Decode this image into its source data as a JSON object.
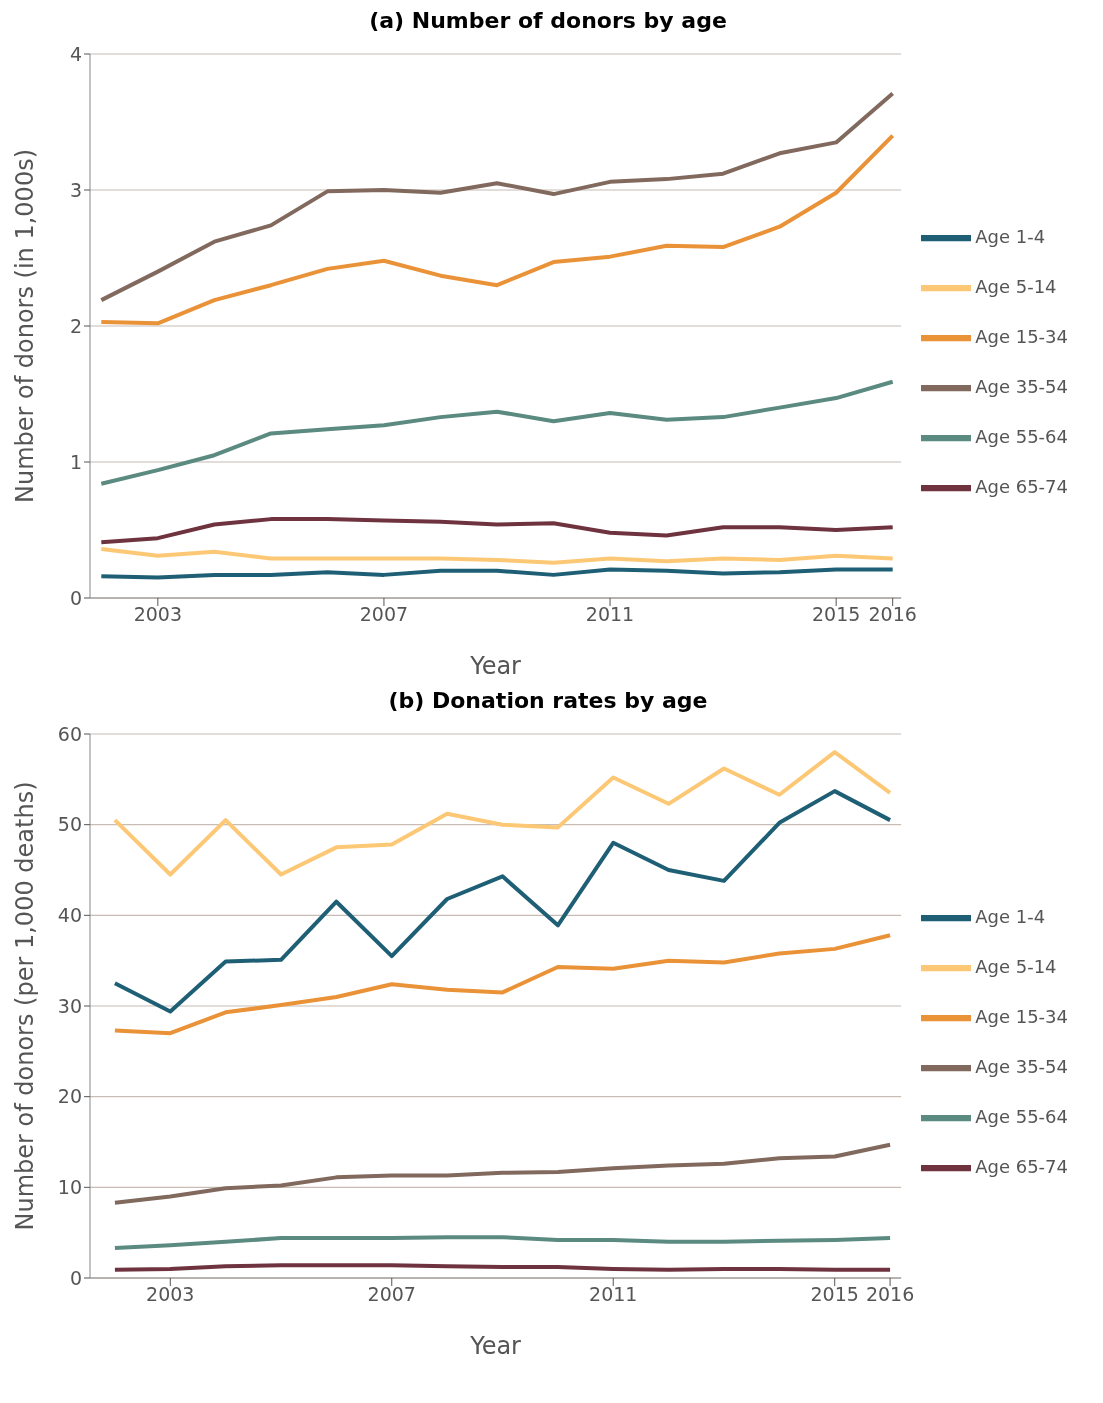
{
  "chart_data": [
    {
      "type": "line",
      "title": "(a) Number of donors by age",
      "xlabel": "Year",
      "ylabel": "Number of donors (in 1,000s)",
      "x": [
        2002,
        2003,
        2004,
        2005,
        2006,
        2007,
        2008,
        2009,
        2010,
        2011,
        2012,
        2013,
        2014,
        2015,
        2016
      ],
      "xlim": [
        2001.8,
        2016.15
      ],
      "xticks": [
        2003,
        2007,
        2011,
        2015,
        2016
      ],
      "ylim": [
        0,
        4
      ],
      "yticks": [
        0,
        1,
        2,
        3,
        4
      ],
      "grid": "y",
      "legend": "right",
      "marker": "none",
      "line_style": "solid",
      "series": [
        {
          "name": "Age 1-4",
          "color": "#1f5f75",
          "values": [
            0.16,
            0.15,
            0.17,
            0.17,
            0.19,
            0.17,
            0.2,
            0.2,
            0.17,
            0.21,
            0.2,
            0.18,
            0.19,
            0.21,
            0.21
          ]
        },
        {
          "name": "Age 5-14",
          "color": "#fdc875",
          "values": [
            0.36,
            0.31,
            0.34,
            0.29,
            0.29,
            0.29,
            0.29,
            0.28,
            0.26,
            0.29,
            0.27,
            0.29,
            0.28,
            0.31,
            0.29
          ]
        },
        {
          "name": "Age 15-34",
          "color": "#ea9238",
          "values": [
            2.03,
            2.02,
            2.19,
            2.3,
            2.42,
            2.48,
            2.37,
            2.3,
            2.47,
            2.51,
            2.59,
            2.58,
            2.73,
            2.98,
            3.4
          ]
        },
        {
          "name": "Age 35-54",
          "color": "#82695e",
          "values": [
            2.19,
            2.4,
            2.62,
            2.74,
            2.99,
            3.0,
            2.98,
            3.05,
            2.97,
            3.06,
            3.08,
            3.12,
            3.27,
            3.35,
            3.71
          ]
        },
        {
          "name": "Age 55-64",
          "color": "#5b8a80",
          "values": [
            0.84,
            0.94,
            1.05,
            1.21,
            1.24,
            1.27,
            1.33,
            1.37,
            1.3,
            1.36,
            1.31,
            1.33,
            1.4,
            1.47,
            1.59
          ]
        },
        {
          "name": "Age 65-74",
          "color": "#6f3340",
          "values": [
            0.41,
            0.44,
            0.54,
            0.58,
            0.58,
            0.57,
            0.56,
            0.54,
            0.55,
            0.48,
            0.46,
            0.52,
            0.52,
            0.5,
            0.52
          ]
        }
      ]
    },
    {
      "type": "line",
      "title": "(b) Donation rates by age",
      "xlabel": "Year",
      "ylabel": "Number of donors (per 1,000 deaths)",
      "x": [
        2002,
        2003,
        2004,
        2005,
        2006,
        2007,
        2008,
        2009,
        2010,
        2011,
        2012,
        2013,
        2014,
        2015,
        2016
      ],
      "xlim": [
        2001.55,
        2016.2
      ],
      "xticks": [
        2003,
        2007,
        2011,
        2015,
        2016
      ],
      "ylim": [
        0,
        60
      ],
      "yticks": [
        0,
        10,
        20,
        30,
        40,
        50,
        60
      ],
      "grid": "y",
      "legend": "right",
      "marker": "none",
      "line_style": "solid",
      "series": [
        {
          "name": "Age 1-4",
          "color": "#1f5f75",
          "values": [
            32.5,
            29.4,
            34.9,
            35.1,
            41.5,
            35.5,
            41.8,
            44.3,
            38.9,
            48,
            45,
            43.8,
            50.2,
            53.7,
            50.5
          ]
        },
        {
          "name": "Age 5-14",
          "color": "#fdc875",
          "values": [
            50.5,
            44.5,
            50.5,
            44.5,
            47.5,
            47.8,
            51.2,
            50,
            49.7,
            55.2,
            52.3,
            56.2,
            53.3,
            58,
            53.5
          ]
        },
        {
          "name": "Age 15-34",
          "color": "#ea9238",
          "values": [
            27.3,
            27,
            29.3,
            30.1,
            31,
            32.4,
            31.8,
            31.5,
            34.3,
            34.1,
            35,
            34.8,
            35.8,
            36.3,
            37.8
          ]
        },
        {
          "name": "Age 35-54",
          "color": "#82695e",
          "values": [
            8.3,
            9,
            9.9,
            10.2,
            11.1,
            11.3,
            11.3,
            11.6,
            11.7,
            12.1,
            12.4,
            12.6,
            13.2,
            13.4,
            14.7
          ]
        },
        {
          "name": "Age 55-64",
          "color": "#5b8a80",
          "values": [
            3.3,
            3.6,
            4,
            4.4,
            4.4,
            4.4,
            4.5,
            4.5,
            4.2,
            4.2,
            4,
            4,
            4.1,
            4.2,
            4.4
          ]
        },
        {
          "name": "Age 65-74",
          "color": "#6f3340",
          "values": [
            0.9,
            1,
            1.3,
            1.4,
            1.4,
            1.4,
            1.3,
            1.2,
            1.2,
            1.0,
            0.9,
            1.0,
            1.0,
            0.9,
            0.9
          ]
        }
      ]
    }
  ]
}
